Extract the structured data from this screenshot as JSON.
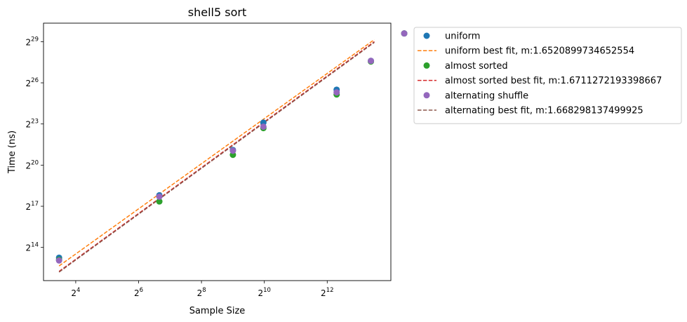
{
  "chart_data": {
    "type": "scatter",
    "title": "shell5 sort",
    "xlabel": "Sample Size",
    "ylabel": "Time (ns)",
    "xscale": "log2",
    "yscale": "log2",
    "xlim_log2": [
      2.975,
      14.025
    ],
    "ylim_log2": [
      11.58,
      30.35
    ],
    "xticks": [
      {
        "base": "2",
        "exp": "4",
        "log2": 4
      },
      {
        "base": "2",
        "exp": "6",
        "log2": 6
      },
      {
        "base": "2",
        "exp": "8",
        "log2": 8
      },
      {
        "base": "2",
        "exp": "10",
        "log2": 10
      },
      {
        "base": "2",
        "exp": "12",
        "log2": 12
      }
    ],
    "yticks": [
      {
        "base": "2",
        "exp": "14",
        "log2": 14
      },
      {
        "base": "2",
        "exp": "17",
        "log2": 17
      },
      {
        "base": "2",
        "exp": "20",
        "log2": 20
      },
      {
        "base": "2",
        "exp": "23",
        "log2": 23
      },
      {
        "base": "2",
        "exp": "26",
        "log2": 26
      },
      {
        "base": "2",
        "exp": "29",
        "log2": 29
      }
    ],
    "legend_position": "outside-right",
    "grid": false,
    "series": [
      {
        "name": "uniform",
        "kind": "points",
        "color": "#1f77b4",
        "x_log2": [
          3.47,
          6.66,
          9.0,
          9.97,
          12.3,
          13.39,
          14.45
        ],
        "y_log2": [
          13.25,
          17.8,
          21.1,
          23.1,
          25.5,
          27.6,
          29.6
        ]
      },
      {
        "name": "uniform best fit, m:1.6520899734652554",
        "kind": "fit",
        "color": "#ff7f0e",
        "x_log2": [
          3.47,
          13.5
        ],
        "y_log2": [
          12.65,
          29.15
        ]
      },
      {
        "name": "almost sorted",
        "kind": "points",
        "color": "#2ca02c",
        "x_log2": [
          3.47,
          6.66,
          9.0,
          9.97,
          12.3,
          13.39,
          14.45
        ],
        "y_log2": [
          13.1,
          17.35,
          20.75,
          22.7,
          25.15,
          27.55,
          29.6
        ]
      },
      {
        "name": "almost sorted best fit, m:1.6711272193398667",
        "kind": "fit",
        "color": "#d62728",
        "x_log2": [
          3.47,
          13.5
        ],
        "y_log2": [
          12.25,
          29.0
        ]
      },
      {
        "name": "alternating shuffle",
        "kind": "points",
        "color": "#9467bd",
        "x_log2": [
          3.47,
          6.66,
          9.0,
          9.97,
          12.3,
          13.39,
          14.45
        ],
        "y_log2": [
          13.05,
          17.7,
          21.05,
          22.8,
          25.3,
          27.6,
          29.6
        ]
      },
      {
        "name": "alternating best fit, m:1.668298137499925",
        "kind": "fit",
        "color": "#8c564b",
        "x_log2": [
          3.47,
          13.5
        ],
        "y_log2": [
          12.2,
          28.95
        ]
      }
    ]
  }
}
